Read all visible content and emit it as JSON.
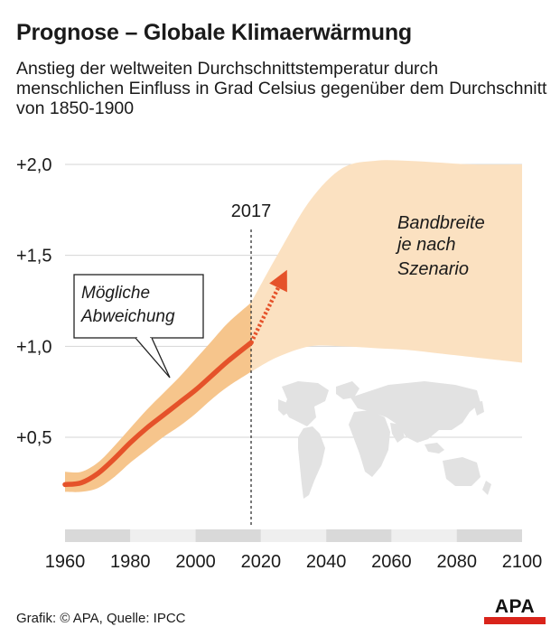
{
  "header": {
    "title": "Prognose – Globale Klimaerwärmung",
    "subtitle": "Anstieg der weltweiten Durchschnittstemperatur durch menschlichen Einfluss in Grad Celsius gegenüber dem Durchschnitt von 1850-1900"
  },
  "chart_data": {
    "type": "line",
    "title": "Prognose – Globale Klimaerwärmung",
    "xlabel": "",
    "ylabel": "",
    "xlim": [
      1960,
      2100
    ],
    "ylim": [
      0.1,
      2.0
    ],
    "x_ticks": [
      1960,
      1980,
      2000,
      2020,
      2040,
      2060,
      2080,
      2100
    ],
    "y_ticks": [
      {
        "value": 2.0,
        "label": "+2,0"
      },
      {
        "value": 1.5,
        "label": "+1,5"
      },
      {
        "value": 1.0,
        "label": "+1,0"
      },
      {
        "value": 0.5,
        "label": "+0,5"
      }
    ],
    "grid": "horizontal",
    "series": [
      {
        "kind": "observed_line",
        "color": "#e5522a",
        "x": [
          1960,
          1965,
          1970,
          1975,
          1980,
          1985,
          1990,
          1995,
          2000,
          2005,
          2010,
          2017
        ],
        "y": [
          0.24,
          0.25,
          0.3,
          0.38,
          0.47,
          0.55,
          0.62,
          0.69,
          0.76,
          0.84,
          0.92,
          1.02
        ]
      },
      {
        "kind": "projection_arrow",
        "color": "#e5522a",
        "x": [
          2017,
          2023,
          2028
        ],
        "y": [
          1.02,
          1.22,
          1.42
        ]
      },
      {
        "kind": "band_past",
        "color": "#f6c58c",
        "x": [
          1960,
          1965,
          1970,
          1975,
          1980,
          1985,
          1990,
          1995,
          2000,
          2005,
          2010,
          2017
        ],
        "upper": [
          0.31,
          0.31,
          0.36,
          0.45,
          0.55,
          0.65,
          0.74,
          0.83,
          0.93,
          1.03,
          1.13,
          1.24
        ],
        "lower": [
          0.2,
          0.2,
          0.22,
          0.28,
          0.36,
          0.43,
          0.5,
          0.56,
          0.63,
          0.71,
          0.78,
          0.86
        ]
      },
      {
        "kind": "band_future",
        "color": "#fbe1c1",
        "x": [
          2017,
          2025,
          2035,
          2045,
          2055,
          2065,
          2075,
          2085,
          2100
        ],
        "upper": [
          1.24,
          1.5,
          1.8,
          1.98,
          2.02,
          2.02,
          2.01,
          2.0,
          2.0
        ],
        "lower": [
          0.86,
          0.94,
          1.0,
          1.0,
          0.99,
          0.98,
          0.96,
          0.94,
          0.91
        ]
      }
    ],
    "annotations": {
      "year_marker": {
        "x": 2017,
        "label": "2017"
      },
      "band_label": [
        "Bandbreite",
        "je nach",
        "Szenario"
      ],
      "callout": [
        "Mögliche",
        "Abweichung"
      ]
    },
    "colors": {
      "line": "#e5522a",
      "band_past": "#f6c58c",
      "band_future": "#fbe1c1",
      "grid": "#d6d6d6",
      "axis_stripe_dark": "#d9d9d9",
      "axis_stripe_light": "#efefef",
      "map": "#e2e2e2"
    },
    "decoration": {
      "background_icon": "world-map-icon"
    }
  },
  "footer": {
    "source": "Grafik: © APA, Quelle: IPCC",
    "logo_text": "APA",
    "logo_color": "#d9241b"
  }
}
